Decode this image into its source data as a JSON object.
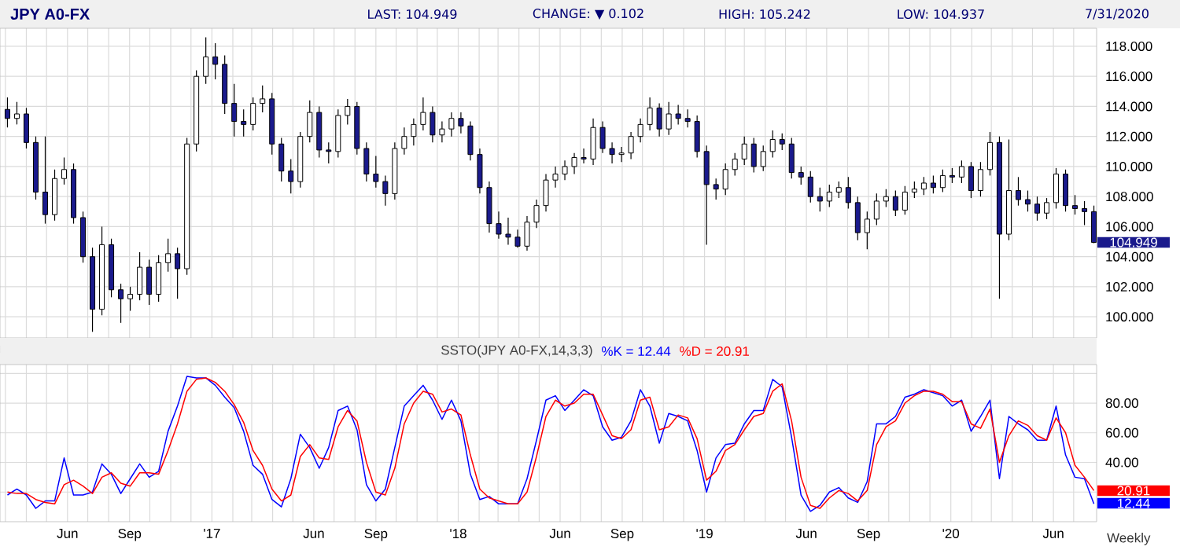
{
  "chart_data": [
    {
      "type": "candlestick",
      "title": "JPY A0-FX",
      "colors": [
        "#1a1a8c",
        "#ffffff",
        "#1a1a8c",
        "#1a1a8c",
        "#1a1a8c",
        "#ffffff",
        "#ffffff",
        "#1a1a8c",
        "#1a1a8c",
        "#1a1a8c",
        "#ffffff",
        "#1a1a8c",
        "#1a1a8c",
        "#ffffff",
        "#ffffff",
        "#1a1a8c",
        "#ffffff",
        "#ffffff",
        "#1a1a8c",
        "#ffffff",
        "#ffffff",
        "#ffffff",
        "#1a1a8c",
        "#1a1a8c",
        "#1a1a8c",
        "#1a1a8c",
        "#ffffff",
        "#ffffff",
        "#1a1a8c",
        "#1a1a8c",
        "#1a1a8c",
        "#ffffff",
        "#ffffff",
        "#1a1a8c",
        "#1a1a8c",
        "#ffffff",
        "#ffffff",
        "#1a1a8c",
        "#1a1a8c",
        "#1a1a8c",
        "#1a1a8c",
        "#ffffff",
        "#ffffff",
        "#ffffff",
        "#ffffff",
        "#1a1a8c",
        "#ffffff",
        "#ffffff",
        "#1a1a8c",
        "#1a1a8c",
        "#1a1a8c",
        "#1a1a8c",
        "#1a1a8c",
        "#1a1a8c",
        "#1a1a8c",
        "#ffffff",
        "#ffffff",
        "#ffffff",
        "#ffffff",
        "#ffffff",
        "#ffffff",
        "#1a1a8c",
        "#ffffff",
        "#1a1a8c",
        "#1a1a8c",
        "#ffffff",
        "#ffffff",
        "#ffffff",
        "#ffffff",
        "#1a1a8c",
        "#ffffff",
        "#1a1a8c",
        "#1a1a8c",
        "#1a1a8c",
        "#1a1a8c",
        "#1a1a8c",
        "#ffffff",
        "#ffffff",
        "#ffffff",
        "#1a1a8c",
        "#ffffff",
        "#ffffff",
        "#1a1a8c",
        "#1a1a8c",
        "#1a1a8c",
        "#1a1a8c",
        "#1a1a8c",
        "#ffffff",
        "#ffffff",
        "#1a1a8c",
        "#1a1a8c",
        "#ffffff",
        "#ffffff",
        "#ffffff",
        "#1a1a8c",
        "#ffffff",
        "#ffffff",
        "#ffffff",
        "#1a1a8c",
        "#ffffff",
        "#1a1a8c",
        "#ffffff",
        "#1a1a8c",
        "#ffffff",
        "#ffffff",
        "#1a1a8c",
        "#ffffff",
        "#1a1a8c",
        "#1a1a8c",
        "#1a1a8c",
        "#ffffff",
        "#ffffff",
        "#1a1a8c",
        "#1a1a8c",
        "#1a1a8c",
        "#1a1a8c"
      ],
      "x": [
        "2016-03-04",
        "2016-03-18",
        "2016-04-01",
        "2016-04-15",
        "2016-04-29",
        "2016-05-13",
        "2016-05-27",
        "2016-06-10",
        "2016-06-24",
        "2016-07-08",
        "2016-07-22",
        "2016-08-05",
        "2016-08-19",
        "2016-09-02",
        "2016-09-16",
        "2016-09-30",
        "2016-10-14",
        "2016-10-28",
        "2016-11-11",
        "2016-11-25",
        "2016-12-09",
        "2016-12-23",
        "2017-01-06",
        "2017-01-20",
        "2017-02-03",
        "2017-02-17",
        "2017-03-03",
        "2017-03-17",
        "2017-03-31",
        "2017-04-14",
        "2017-04-28",
        "2017-05-12",
        "2017-05-26",
        "2017-06-09",
        "2017-06-23",
        "2017-07-07",
        "2017-07-21",
        "2017-08-04",
        "2017-08-18",
        "2017-09-01",
        "2017-09-15",
        "2017-09-29",
        "2017-10-13",
        "2017-10-27",
        "2017-11-10",
        "2017-11-24",
        "2017-12-08",
        "2017-12-22",
        "2018-01-05",
        "2018-01-19",
        "2018-02-02",
        "2018-02-16",
        "2018-03-02",
        "2018-03-16",
        "2018-03-30",
        "2018-04-13",
        "2018-04-27",
        "2018-05-11",
        "2018-05-25",
        "2018-06-08",
        "2018-06-22",
        "2018-07-06",
        "2018-07-20",
        "2018-08-03",
        "2018-08-17",
        "2018-08-31",
        "2018-09-14",
        "2018-09-28",
        "2018-10-12",
        "2018-10-26",
        "2018-11-09",
        "2018-11-23",
        "2018-12-07",
        "2018-12-21",
        "2019-01-04",
        "2019-01-18",
        "2019-02-01",
        "2019-02-15",
        "2019-03-01",
        "2019-03-15",
        "2019-03-29",
        "2019-04-12",
        "2019-04-26",
        "2019-05-10",
        "2019-05-24",
        "2019-06-07",
        "2019-06-21",
        "2019-07-05",
        "2019-07-19",
        "2019-08-02",
        "2019-08-16",
        "2019-08-30",
        "2019-09-13",
        "2019-09-27",
        "2019-10-11",
        "2019-10-25",
        "2019-11-08",
        "2019-11-22",
        "2019-12-06",
        "2019-12-20",
        "2020-01-03",
        "2020-01-17",
        "2020-01-31",
        "2020-02-14",
        "2020-02-28",
        "2020-03-13",
        "2020-03-27",
        "2020-04-10",
        "2020-04-24",
        "2020-05-08",
        "2020-05-22",
        "2020-06-05",
        "2020-06-19",
        "2020-07-03",
        "2020-07-17",
        "2020-07-31"
      ],
      "ohlc": [
        [
          113.8,
          114.6,
          112.6,
          113.2
        ],
        [
          113.2,
          114.3,
          112.8,
          113.5
        ],
        [
          113.5,
          113.9,
          111.2,
          111.6
        ],
        [
          111.6,
          112.0,
          107.8,
          108.3
        ],
        [
          108.3,
          112.0,
          106.2,
          106.8
        ],
        [
          106.8,
          109.8,
          106.4,
          109.2
        ],
        [
          109.2,
          110.6,
          108.8,
          109.8
        ],
        [
          109.8,
          110.2,
          106.2,
          106.6
        ],
        [
          106.6,
          107.0,
          103.6,
          104.0
        ],
        [
          104.0,
          104.6,
          99.0,
          100.5
        ],
        [
          100.5,
          106.0,
          100.1,
          104.8
        ],
        [
          104.8,
          105.2,
          101.3,
          101.8
        ],
        [
          101.8,
          102.2,
          99.6,
          101.2
        ],
        [
          101.2,
          102.0,
          100.4,
          101.5
        ],
        [
          101.5,
          104.3,
          101.1,
          103.3
        ],
        [
          103.3,
          103.8,
          100.8,
          101.5
        ],
        [
          101.5,
          104.1,
          101.0,
          103.6
        ],
        [
          103.6,
          105.2,
          103.0,
          104.2
        ],
        [
          104.2,
          104.6,
          101.2,
          103.2
        ],
        [
          103.2,
          111.9,
          102.8,
          111.5
        ],
        [
          111.5,
          116.4,
          111.0,
          116.0
        ],
        [
          116.0,
          118.6,
          115.5,
          117.3
        ],
        [
          117.3,
          118.2,
          115.8,
          116.8
        ],
        [
          116.8,
          117.4,
          113.5,
          114.2
        ],
        [
          114.2,
          115.5,
          112.0,
          113.0
        ],
        [
          113.0,
          113.8,
          112.0,
          112.8
        ],
        [
          112.8,
          114.6,
          112.4,
          114.2
        ],
        [
          114.2,
          115.4,
          113.6,
          114.5
        ],
        [
          114.5,
          114.9,
          110.8,
          111.5
        ],
        [
          111.5,
          111.9,
          109.0,
          109.7
        ],
        [
          109.7,
          110.5,
          108.2,
          109.0
        ],
        [
          109.0,
          112.3,
          108.6,
          112.0
        ],
        [
          112.0,
          114.4,
          111.6,
          113.6
        ],
        [
          113.6,
          114.0,
          110.6,
          111.1
        ],
        [
          111.1,
          111.6,
          110.2,
          111.0
        ],
        [
          111.0,
          113.8,
          110.6,
          113.4
        ],
        [
          113.4,
          114.5,
          112.8,
          114.0
        ],
        [
          114.0,
          114.3,
          110.8,
          111.2
        ],
        [
          111.2,
          111.6,
          109.0,
          109.5
        ],
        [
          109.5,
          110.7,
          108.6,
          109.0
        ],
        [
          109.0,
          109.4,
          107.4,
          108.2
        ],
        [
          108.2,
          111.6,
          107.8,
          111.2
        ],
        [
          111.2,
          112.6,
          110.8,
          112.0
        ],
        [
          112.0,
          113.2,
          111.4,
          112.8
        ],
        [
          112.8,
          114.6,
          112.4,
          113.6
        ],
        [
          113.6,
          114.0,
          111.6,
          112.1
        ],
        [
          112.1,
          113.0,
          111.6,
          112.5
        ],
        [
          112.5,
          113.6,
          112.0,
          113.2
        ],
        [
          113.2,
          113.6,
          112.2,
          112.7
        ],
        [
          112.7,
          113.0,
          110.4,
          110.8
        ],
        [
          110.8,
          111.2,
          108.2,
          108.6
        ],
        [
          108.6,
          109.0,
          105.6,
          106.2
        ],
        [
          106.2,
          107.0,
          105.2,
          105.5
        ],
        [
          105.5,
          106.6,
          104.8,
          105.3
        ],
        [
          105.3,
          105.8,
          104.6,
          104.7
        ],
        [
          104.7,
          106.7,
          104.4,
          106.3
        ],
        [
          106.3,
          107.8,
          105.9,
          107.4
        ],
        [
          107.4,
          109.5,
          107.0,
          109.1
        ],
        [
          109.1,
          110.0,
          108.6,
          109.5
        ],
        [
          109.5,
          110.4,
          109.1,
          110.0
        ],
        [
          110.0,
          110.9,
          109.5,
          110.6
        ],
        [
          110.6,
          111.2,
          110.2,
          110.5
        ],
        [
          110.5,
          113.2,
          110.1,
          112.6
        ],
        [
          112.6,
          113.0,
          110.9,
          111.2
        ],
        [
          111.2,
          111.6,
          110.2,
          110.8
        ],
        [
          110.8,
          111.3,
          110.3,
          110.9
        ],
        [
          110.9,
          112.3,
          110.5,
          112.0
        ],
        [
          112.0,
          113.2,
          111.6,
          112.8
        ],
        [
          112.8,
          114.6,
          112.4,
          113.9
        ],
        [
          113.9,
          114.2,
          112.0,
          112.5
        ],
        [
          112.5,
          114.3,
          112.1,
          113.5
        ],
        [
          113.5,
          114.1,
          112.8,
          113.2
        ],
        [
          113.2,
          113.8,
          112.6,
          113.0
        ],
        [
          113.0,
          113.4,
          110.6,
          111.0
        ],
        [
          111.0,
          111.4,
          104.8,
          108.8
        ],
        [
          108.8,
          109.2,
          107.8,
          108.5
        ],
        [
          108.5,
          110.2,
          108.1,
          109.8
        ],
        [
          109.8,
          110.9,
          109.4,
          110.5
        ],
        [
          110.5,
          112.0,
          110.1,
          111.5
        ],
        [
          111.5,
          111.9,
          109.6,
          110.0
        ],
        [
          110.0,
          111.4,
          109.7,
          111.0
        ],
        [
          111.0,
          112.4,
          110.6,
          111.8
        ],
        [
          111.8,
          112.2,
          111.1,
          111.5
        ],
        [
          111.5,
          111.9,
          109.2,
          109.6
        ],
        [
          109.6,
          110.0,
          108.8,
          109.3
        ],
        [
          109.3,
          109.7,
          107.6,
          108.0
        ],
        [
          108.0,
          108.6,
          107.0,
          107.7
        ],
        [
          107.7,
          108.8,
          107.3,
          108.3
        ],
        [
          108.3,
          109.0,
          107.9,
          108.6
        ],
        [
          108.6,
          109.3,
          107.2,
          107.6
        ],
        [
          107.6,
          108.0,
          105.1,
          105.6
        ],
        [
          105.6,
          107.0,
          104.5,
          106.5
        ],
        [
          106.5,
          108.2,
          106.1,
          107.7
        ],
        [
          107.7,
          108.5,
          107.3,
          108.0
        ],
        [
          108.0,
          108.4,
          106.7,
          107.1
        ],
        [
          107.1,
          108.7,
          106.8,
          108.3
        ],
        [
          108.3,
          109.0,
          107.9,
          108.5
        ],
        [
          108.5,
          109.3,
          108.1,
          108.9
        ],
        [
          108.9,
          109.4,
          108.2,
          108.6
        ],
        [
          108.6,
          109.8,
          108.3,
          109.4
        ],
        [
          109.4,
          109.9,
          108.9,
          109.3
        ],
        [
          109.3,
          110.4,
          108.9,
          110.0
        ],
        [
          110.0,
          110.3,
          107.9,
          108.4
        ],
        [
          108.4,
          110.3,
          108.0,
          109.8
        ],
        [
          109.8,
          112.3,
          109.4,
          111.6
        ],
        [
          111.6,
          112.0,
          101.2,
          105.5
        ],
        [
          105.5,
          111.8,
          105.1,
          108.4
        ],
        [
          108.4,
          109.3,
          107.4,
          107.8
        ],
        [
          107.8,
          108.4,
          107.0,
          107.5
        ],
        [
          107.5,
          108.0,
          106.4,
          106.9
        ],
        [
          106.9,
          107.9,
          106.5,
          107.6
        ],
        [
          107.6,
          109.9,
          107.2,
          109.5
        ],
        [
          109.5,
          109.8,
          107.0,
          107.4
        ],
        [
          107.4,
          108.1,
          106.8,
          107.2
        ],
        [
          107.2,
          107.7,
          106.1,
          107.0
        ],
        [
          107.0,
          107.4,
          104.9,
          104.949
        ]
      ],
      "xlim": [
        "2016-02-22",
        "2020-08-04"
      ],
      "ylim": [
        98.6,
        119.2
      ],
      "xticks": [
        {
          "value": "2016-03-01",
          "label": null
        },
        {
          "value": "2016-04-01",
          "label": null
        },
        {
          "value": "2016-05-01",
          "label": null
        },
        {
          "value": "2016-06-01",
          "label": null
        },
        {
          "value": "2016-07-01",
          "label": null
        },
        {
          "value": "2016-08-01",
          "label": null
        },
        {
          "value": "2016-09-01",
          "label": null
        },
        {
          "value": "2016-10-01",
          "label": null
        },
        {
          "value": "2016-11-01",
          "label": null
        },
        {
          "value": "2016-12-01",
          "label": null
        },
        {
          "value": "2017-01-01",
          "label": null
        },
        {
          "value": "2017-02-01",
          "label": null
        },
        {
          "value": "2017-03-01",
          "label": null
        },
        {
          "value": "2017-04-01",
          "label": null
        },
        {
          "value": "2017-05-01",
          "label": null
        },
        {
          "value": "2017-06-01",
          "label": null
        },
        {
          "value": "2017-07-01",
          "label": null
        },
        {
          "value": "2017-08-01",
          "label": null
        },
        {
          "value": "2017-09-01",
          "label": null
        },
        {
          "value": "2017-10-01",
          "label": null
        },
        {
          "value": "2017-11-01",
          "label": null
        },
        {
          "value": "2017-12-01",
          "label": null
        },
        {
          "value": "2018-01-01",
          "label": null
        },
        {
          "value": "2018-02-01",
          "label": null
        },
        {
          "value": "2018-03-01",
          "label": null
        },
        {
          "value": "2018-04-01",
          "label": null
        },
        {
          "value": "2018-05-01",
          "label": null
        },
        {
          "value": "2018-06-01",
          "label": null
        },
        {
          "value": "2018-07-01",
          "label": null
        },
        {
          "value": "2018-08-01",
          "label": null
        },
        {
          "value": "2018-09-01",
          "label": null
        },
        {
          "value": "2018-10-01",
          "label": null
        },
        {
          "value": "2018-11-01",
          "label": null
        },
        {
          "value": "2018-12-01",
          "label": null
        },
        {
          "value": "2019-01-01",
          "label": null
        },
        {
          "value": "2019-02-01",
          "label": null
        },
        {
          "value": "2019-03-01",
          "label": null
        },
        {
          "value": "2019-04-01",
          "label": null
        },
        {
          "value": "2019-05-01",
          "label": null
        },
        {
          "value": "2019-06-01",
          "label": null
        },
        {
          "value": "2019-07-01",
          "label": null
        },
        {
          "value": "2019-08-01",
          "label": null
        },
        {
          "value": "2019-09-01",
          "label": null
        },
        {
          "value": "2019-10-01",
          "label": null
        },
        {
          "value": "2019-11-01",
          "label": null
        },
        {
          "value": "2019-12-01",
          "label": null
        },
        {
          "value": "2020-01-01",
          "label": null
        },
        {
          "value": "2020-02-01",
          "label": null
        },
        {
          "value": "2020-03-01",
          "label": null
        },
        {
          "value": "2020-04-01",
          "label": null
        },
        {
          "value": "2020-05-01",
          "label": null
        },
        {
          "value": "2020-06-01",
          "label": null
        },
        {
          "value": "2020-07-01",
          "label": null
        }
      ],
      "yticks": [
        {
          "value": 100,
          "label": "100.000"
        },
        {
          "value": 102,
          "label": "102.000"
        },
        {
          "value": 104,
          "label": "104.000"
        },
        {
          "value": 106,
          "label": "106.000"
        },
        {
          "value": 108,
          "label": "108.000"
        },
        {
          "value": 110,
          "label": "110.000"
        },
        {
          "value": 112,
          "label": "112.000"
        },
        {
          "value": 114,
          "label": "114.000"
        },
        {
          "value": 116,
          "label": "116.000"
        },
        {
          "value": 118,
          "label": "118.000"
        }
      ],
      "tick_labels": "y",
      "grid": true,
      "annotations": [
        "LAST: 104.949",
        "CHANGE: ▼ 0.102",
        "HIGH: 105.242",
        "LOW: 104.937",
        "7/31/2020",
        {
          "text": "104.949",
          "x": "2020-07-31",
          "y": 104.949
        }
      ]
    },
    {
      "type": "line",
      "title": "SSTO(JPY A0-FX,14,3,3)",
      "x": [
        "2016-03-04",
        "2016-03-18",
        "2016-04-01",
        "2016-04-15",
        "2016-04-29",
        "2016-05-13",
        "2016-05-27",
        "2016-06-10",
        "2016-06-24",
        "2016-07-08",
        "2016-07-22",
        "2016-08-05",
        "2016-08-19",
        "2016-09-02",
        "2016-09-16",
        "2016-09-30",
        "2016-10-14",
        "2016-10-28",
        "2016-11-11",
        "2016-11-25",
        "2016-12-09",
        "2016-12-23",
        "2017-01-06",
        "2017-01-20",
        "2017-02-03",
        "2017-02-17",
        "2017-03-03",
        "2017-03-17",
        "2017-03-31",
        "2017-04-14",
        "2017-04-28",
        "2017-05-12",
        "2017-05-26",
        "2017-06-09",
        "2017-06-23",
        "2017-07-07",
        "2017-07-21",
        "2017-08-04",
        "2017-08-18",
        "2017-09-01",
        "2017-09-15",
        "2017-09-29",
        "2017-10-13",
        "2017-10-27",
        "2017-11-10",
        "2017-11-24",
        "2017-12-08",
        "2017-12-22",
        "2018-01-05",
        "2018-01-19",
        "2018-02-02",
        "2018-02-16",
        "2018-03-02",
        "2018-03-16",
        "2018-03-30",
        "2018-04-13",
        "2018-04-27",
        "2018-05-11",
        "2018-05-25",
        "2018-06-08",
        "2018-06-22",
        "2018-07-06",
        "2018-07-20",
        "2018-08-03",
        "2018-08-17",
        "2018-08-31",
        "2018-09-14",
        "2018-09-28",
        "2018-10-12",
        "2018-10-26",
        "2018-11-09",
        "2018-11-23",
        "2018-12-07",
        "2018-12-21",
        "2019-01-04",
        "2019-01-18",
        "2019-02-01",
        "2019-02-15",
        "2019-03-01",
        "2019-03-15",
        "2019-03-29",
        "2019-04-12",
        "2019-04-26",
        "2019-05-10",
        "2019-05-24",
        "2019-06-07",
        "2019-06-21",
        "2019-07-05",
        "2019-07-19",
        "2019-08-02",
        "2019-08-16",
        "2019-08-30",
        "2019-09-13",
        "2019-09-27",
        "2019-10-11",
        "2019-10-25",
        "2019-11-08",
        "2019-11-22",
        "2019-12-06",
        "2019-12-20",
        "2020-01-03",
        "2020-01-17",
        "2020-01-31",
        "2020-02-14",
        "2020-02-28",
        "2020-03-13",
        "2020-03-27",
        "2020-04-10",
        "2020-04-24",
        "2020-05-08",
        "2020-05-22",
        "2020-06-05",
        "2020-06-19",
        "2020-07-03",
        "2020-07-17",
        "2020-07-31"
      ],
      "series": [
        {
          "name": "%K = 12.44",
          "color": "#0000ff",
          "values": [
            18,
            22,
            18,
            9,
            14,
            14,
            43,
            18,
            18,
            20,
            39,
            32,
            19,
            29,
            39,
            30,
            34,
            61,
            78,
            98,
            97,
            97,
            92,
            84,
            77,
            61,
            38,
            32,
            15,
            10,
            29,
            59,
            50,
            36,
            50,
            75,
            78,
            62,
            25,
            14,
            22,
            50,
            78,
            85,
            92,
            82,
            69,
            82,
            68,
            32,
            15,
            17,
            12,
            12,
            12,
            29,
            55,
            82,
            85,
            75,
            82,
            89,
            85,
            64,
            55,
            57,
            68,
            89,
            78,
            53,
            73,
            71,
            68,
            48,
            20,
            43,
            52,
            53,
            66,
            75,
            75,
            96,
            91,
            57,
            18,
            7,
            11,
            20,
            23,
            16,
            13,
            27,
            66,
            66,
            71,
            84,
            86,
            89,
            87,
            85,
            78,
            82,
            61,
            71,
            82,
            29,
            71,
            66,
            62,
            55,
            55,
            78,
            45,
            30,
            29,
            12
          ]
        },
        {
          "name": "%D = 20.91",
          "color": "#ff0000",
          "values": [
            20,
            19,
            19,
            15,
            13,
            12,
            25,
            28,
            24,
            19,
            30,
            33,
            26,
            24,
            33,
            33,
            32,
            48,
            66,
            88,
            96,
            97,
            94,
            88,
            79,
            67,
            48,
            38,
            22,
            14,
            18,
            44,
            52,
            43,
            42,
            64,
            75,
            68,
            40,
            20,
            18,
            36,
            66,
            80,
            88,
            86,
            74,
            76,
            72,
            45,
            22,
            16,
            14,
            12,
            12,
            20,
            44,
            71,
            82,
            78,
            80,
            86,
            86,
            72,
            58,
            56,
            62,
            82,
            84,
            62,
            64,
            72,
            70,
            56,
            28,
            34,
            48,
            52,
            62,
            71,
            73,
            88,
            93,
            68,
            30,
            11,
            9,
            16,
            21,
            19,
            14,
            21,
            52,
            64,
            68,
            80,
            85,
            88,
            88,
            86,
            81,
            81,
            66,
            63,
            76,
            40,
            58,
            68,
            65,
            58,
            55,
            70,
            60,
            38,
            30,
            21
          ]
        }
      ],
      "xlim": [
        "2016-02-22",
        "2020-08-04"
      ],
      "ylim": [
        0,
        106
      ],
      "xticks": [
        {
          "value": "2016-03-01",
          "label": null
        },
        {
          "value": "2016-04-01",
          "label": null
        },
        {
          "value": "2016-05-01",
          "label": null
        },
        {
          "value": "2016-06-01",
          "label": "Jun"
        },
        {
          "value": "2016-07-01",
          "label": null
        },
        {
          "value": "2016-08-01",
          "label": null
        },
        {
          "value": "2016-09-01",
          "label": "Sep"
        },
        {
          "value": "2016-10-01",
          "label": null
        },
        {
          "value": "2016-11-01",
          "label": null
        },
        {
          "value": "2016-12-01",
          "label": null
        },
        {
          "value": "2017-01-01",
          "label": "'17"
        },
        {
          "value": "2017-02-01",
          "label": null
        },
        {
          "value": "2017-03-01",
          "label": null
        },
        {
          "value": "2017-04-01",
          "label": null
        },
        {
          "value": "2017-05-01",
          "label": null
        },
        {
          "value": "2017-06-01",
          "label": "Jun"
        },
        {
          "value": "2017-07-01",
          "label": null
        },
        {
          "value": "2017-08-01",
          "label": null
        },
        {
          "value": "2017-09-01",
          "label": "Sep"
        },
        {
          "value": "2017-10-01",
          "label": null
        },
        {
          "value": "2017-11-01",
          "label": null
        },
        {
          "value": "2017-12-01",
          "label": null
        },
        {
          "value": "2018-01-01",
          "label": "'18"
        },
        {
          "value": "2018-02-01",
          "label": null
        },
        {
          "value": "2018-03-01",
          "label": null
        },
        {
          "value": "2018-04-01",
          "label": null
        },
        {
          "value": "2018-05-01",
          "label": null
        },
        {
          "value": "2018-06-01",
          "label": "Jun"
        },
        {
          "value": "2018-07-01",
          "label": null
        },
        {
          "value": "2018-08-01",
          "label": null
        },
        {
          "value": "2018-09-01",
          "label": "Sep"
        },
        {
          "value": "2018-10-01",
          "label": null
        },
        {
          "value": "2018-11-01",
          "label": null
        },
        {
          "value": "2018-12-01",
          "label": null
        },
        {
          "value": "2019-01-01",
          "label": "'19"
        },
        {
          "value": "2019-02-01",
          "label": null
        },
        {
          "value": "2019-03-01",
          "label": null
        },
        {
          "value": "2019-04-01",
          "label": null
        },
        {
          "value": "2019-05-01",
          "label": null
        },
        {
          "value": "2019-06-01",
          "label": "Jun"
        },
        {
          "value": "2019-07-01",
          "label": null
        },
        {
          "value": "2019-08-01",
          "label": null
        },
        {
          "value": "2019-09-01",
          "label": "Sep"
        },
        {
          "value": "2019-10-01",
          "label": null
        },
        {
          "value": "2019-11-01",
          "label": null
        },
        {
          "value": "2019-12-01",
          "label": null
        },
        {
          "value": "2020-01-01",
          "label": "'20"
        },
        {
          "value": "2020-02-01",
          "label": null
        },
        {
          "value": "2020-03-01",
          "label": null
        },
        {
          "value": "2020-04-01",
          "label": null
        },
        {
          "value": "2020-05-01",
          "label": null
        },
        {
          "value": "2020-06-01",
          "label": "Jun"
        },
        {
          "value": "2020-07-01",
          "label": null
        }
      ],
      "yticks": [
        {
          "value": 20,
          "label": null
        },
        {
          "value": 40,
          "label": "40.00"
        },
        {
          "value": 60,
          "label": "60.00"
        },
        {
          "value": 80,
          "label": "80.00"
        },
        {
          "value": 100,
          "label": null
        }
      ],
      "grid": true,
      "annotations": [
        "Weekly",
        {
          "text": "20.91",
          "x": "2020-07-31",
          "y": 20.91
        },
        {
          "text": "12.44",
          "x": "2020-07-31",
          "y": 12.44
        }
      ]
    }
  ]
}
